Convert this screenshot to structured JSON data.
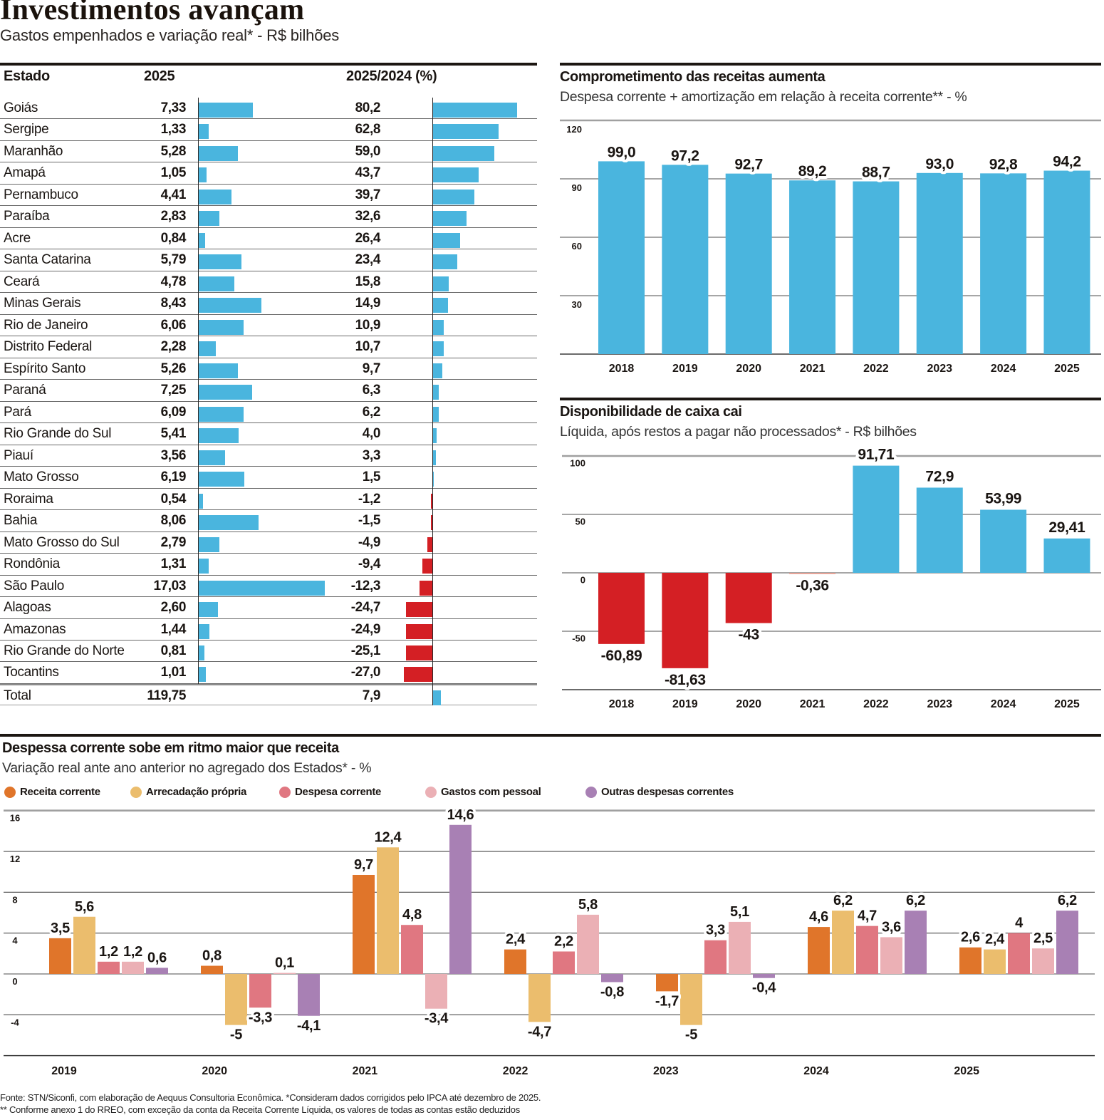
{
  "header": {
    "title": "Investimentos avançam",
    "subtitle": "Gastos empenhados e variação real* - R$ bilhões"
  },
  "chart_data": [
    {
      "type": "table",
      "columns": {
        "estado": "Estado",
        "investimento": "2025",
        "variacao": "2025/2024  (%)"
      },
      "colors": {
        "positive": "#4ab5de",
        "negative": "#d41f24"
      },
      "rows": [
        {
          "estado": "Goiás",
          "investimento_2025": 7.33,
          "investimento_label": "7,33",
          "variacao_pct": 80.2,
          "variacao_label": "80,2"
        },
        {
          "estado": "Sergipe",
          "investimento_2025": 1.33,
          "investimento_label": "1,33",
          "variacao_pct": 62.8,
          "variacao_label": "62,8"
        },
        {
          "estado": "Maranhão",
          "investimento_2025": 5.28,
          "investimento_label": "5,28",
          "variacao_pct": 59.0,
          "variacao_label": "59,0"
        },
        {
          "estado": "Amapá",
          "investimento_2025": 1.05,
          "investimento_label": "1,05",
          "variacao_pct": 43.7,
          "variacao_label": "43,7"
        },
        {
          "estado": "Pernambuco",
          "investimento_2025": 4.41,
          "investimento_label": "4,41",
          "variacao_pct": 39.7,
          "variacao_label": "39,7"
        },
        {
          "estado": "Paraíba",
          "investimento_2025": 2.83,
          "investimento_label": "2,83",
          "variacao_pct": 32.6,
          "variacao_label": "32,6"
        },
        {
          "estado": "Acre",
          "investimento_2025": 0.84,
          "investimento_label": "0,84",
          "variacao_pct": 26.4,
          "variacao_label": "26,4"
        },
        {
          "estado": "Santa Catarina",
          "investimento_2025": 5.79,
          "investimento_label": "5,79",
          "variacao_pct": 23.4,
          "variacao_label": "23,4"
        },
        {
          "estado": "Ceará",
          "investimento_2025": 4.78,
          "investimento_label": "4,78",
          "variacao_pct": 15.8,
          "variacao_label": "15,8"
        },
        {
          "estado": "Minas Gerais",
          "investimento_2025": 8.43,
          "investimento_label": "8,43",
          "variacao_pct": 14.9,
          "variacao_label": "14,9"
        },
        {
          "estado": "Rio de Janeiro",
          "investimento_2025": 6.06,
          "investimento_label": "6,06",
          "variacao_pct": 10.9,
          "variacao_label": "10,9"
        },
        {
          "estado": "Distrito Federal",
          "investimento_2025": 2.28,
          "investimento_label": "2,28",
          "variacao_pct": 10.7,
          "variacao_label": "10,7"
        },
        {
          "estado": "Espírito Santo",
          "investimento_2025": 5.26,
          "investimento_label": "5,26",
          "variacao_pct": 9.7,
          "variacao_label": "9,7"
        },
        {
          "estado": "Paraná",
          "investimento_2025": 7.25,
          "investimento_label": "7,25",
          "variacao_pct": 6.3,
          "variacao_label": "6,3"
        },
        {
          "estado": "Pará",
          "investimento_2025": 6.09,
          "investimento_label": "6,09",
          "variacao_pct": 6.2,
          "variacao_label": "6,2"
        },
        {
          "estado": "Rio Grande do Sul",
          "investimento_2025": 5.41,
          "investimento_label": "5,41",
          "variacao_pct": 4.0,
          "variacao_label": "4,0"
        },
        {
          "estado": "Piauí",
          "investimento_2025": 3.56,
          "investimento_label": "3,56",
          "variacao_pct": 3.3,
          "variacao_label": "3,3"
        },
        {
          "estado": "Mato Grosso",
          "investimento_2025": 6.19,
          "investimento_label": "6,19",
          "variacao_pct": 1.5,
          "variacao_label": "1,5"
        },
        {
          "estado": "Roraima",
          "investimento_2025": 0.54,
          "investimento_label": "0,54",
          "variacao_pct": -1.2,
          "variacao_label": "-1,2"
        },
        {
          "estado": "Bahia",
          "investimento_2025": 8.06,
          "investimento_label": "8,06",
          "variacao_pct": -1.5,
          "variacao_label": "-1,5"
        },
        {
          "estado": "Mato Grosso do Sul",
          "investimento_2025": 2.79,
          "investimento_label": "2,79",
          "variacao_pct": -4.9,
          "variacao_label": "-4,9"
        },
        {
          "estado": "Rondônia",
          "investimento_2025": 1.31,
          "investimento_label": "1,31",
          "variacao_pct": -9.4,
          "variacao_label": "-9,4"
        },
        {
          "estado": "São Paulo",
          "investimento_2025": 17.03,
          "investimento_label": "17,03",
          "variacao_pct": -12.3,
          "variacao_label": "-12,3"
        },
        {
          "estado": "Alagoas",
          "investimento_2025": 2.6,
          "investimento_label": "2,60",
          "variacao_pct": -24.7,
          "variacao_label": "-24,7"
        },
        {
          "estado": "Amazonas",
          "investimento_2025": 1.44,
          "investimento_label": "1,44",
          "variacao_pct": -24.9,
          "variacao_label": "-24,9"
        },
        {
          "estado": "Rio Grande do Norte",
          "investimento_2025": 0.81,
          "investimento_label": "0,81",
          "variacao_pct": -25.1,
          "variacao_label": "-25,1"
        },
        {
          "estado": "Tocantins",
          "investimento_2025": 1.01,
          "investimento_label": "1,01",
          "variacao_pct": -27.0,
          "variacao_label": "-27,0"
        }
      ],
      "total": {
        "estado": "Total",
        "investimento_2025": 119.75,
        "investimento_label": "119,75",
        "variacao_pct": 7.9,
        "variacao_label": "7,9"
      }
    },
    {
      "type": "bar",
      "title": "Comprometimento das receitas aumenta",
      "subtitle": "Despesa corrente + amortização em relação à receita corrente** - %",
      "categories": [
        "2018",
        "2019",
        "2020",
        "2021",
        "2022",
        "2023",
        "2024",
        "2025"
      ],
      "values": [
        99.0,
        97.2,
        92.7,
        89.2,
        88.7,
        93.0,
        92.8,
        94.2
      ],
      "labels": [
        "99,0",
        "97,2",
        "92,7",
        "89,2",
        "88,7",
        "93,0",
        "92,8",
        "94,2"
      ],
      "yticks": [
        120,
        90,
        60,
        30
      ],
      "ylim": [
        0,
        120
      ],
      "xlabel": "",
      "ylabel": "",
      "grid": true,
      "legend": "none",
      "colors": {
        "positive": "#4ab5de",
        "negative": "#d41f24"
      }
    },
    {
      "type": "bar",
      "title": "Disponibilidade de caixa cai",
      "subtitle": "Líquida, após restos a pagar não processados* - R$ bilhões",
      "categories": [
        "2018",
        "2019",
        "2020",
        "2021",
        "2022",
        "2023",
        "2024",
        "2025"
      ],
      "values": [
        -60.89,
        -81.63,
        -43,
        -0.36,
        91.71,
        72.9,
        53.99,
        29.41
      ],
      "labels": [
        "-60,89",
        "-81,63",
        "-43",
        "-0,36",
        "91,71",
        "72,9",
        "53,99",
        "29,41"
      ],
      "yticks": [
        100,
        50,
        0,
        -50
      ],
      "ylim": [
        -100,
        100
      ],
      "xlabel": "",
      "ylabel": "",
      "grid": true,
      "legend": "none",
      "colors": {
        "positive": "#4ab5de",
        "negative": "#d41f24"
      }
    },
    {
      "type": "bar",
      "subtype": "grouped",
      "title": "Despessa corrente sobe em ritmo maior que receita",
      "subtitle": "Variação real ante ano anterior no agregado dos Estados* - %",
      "categories": [
        "2019",
        "2020",
        "2021",
        "2022",
        "2023",
        "2024",
        "2025"
      ],
      "series": [
        {
          "name": "Receita corrente",
          "color": "#e0752a",
          "values": [
            3.5,
            0.8,
            9.7,
            2.4,
            -1.7,
            4.6,
            2.6
          ],
          "labels": [
            "3,5",
            "0,8",
            "9,7",
            "2,4",
            "-1,7",
            "4,6",
            "2,6"
          ]
        },
        {
          "name": "Arrecadação própria",
          "color": "#ebbd6d",
          "values": [
            5.6,
            -5,
            12.4,
            -4.7,
            -5,
            6.2,
            2.4
          ],
          "labels": [
            "5,6",
            "-5",
            "12,4",
            "-4,7",
            "-5",
            "6,2",
            "2,4"
          ]
        },
        {
          "name": "Despesa corrente",
          "color": "#e07781",
          "values": [
            1.2,
            -3.3,
            4.8,
            2.2,
            3.3,
            4.7,
            4
          ],
          "labels": [
            "1,2",
            "-3,3",
            "4,8",
            "2,2",
            "3,3",
            "4,7",
            "4"
          ]
        },
        {
          "name": "Gastos com pessoal",
          "color": "#ebb0b5",
          "values": [
            1.2,
            0.1,
            -3.4,
            5.8,
            5.1,
            3.6,
            2.5
          ],
          "labels": [
            "1,2",
            "0,1",
            "-3,4",
            "5,8",
            "5,1",
            "3,6",
            "2,5"
          ]
        },
        {
          "name": "Outras despesas correntes",
          "color": "#a880b4",
          "values": [
            0.6,
            -4.1,
            14.6,
            -0.8,
            -0.4,
            6.2,
            6.2
          ],
          "labels": [
            "0,6",
            "-4,1",
            "14,6",
            "-0,8",
            "-0,4",
            "6,2",
            "6,2"
          ]
        }
      ],
      "yticks": [
        16,
        12,
        8,
        4,
        0,
        -4
      ],
      "ylim": [
        -8,
        16
      ],
      "xlabel": "",
      "ylabel": "",
      "grid": true,
      "legend": "top-left"
    }
  ],
  "footer": {
    "notes": [
      "Fonte: STN/Siconfi, com elaboração de Aequus Consultoria Econômica. *Consideram dados corrigidos pelo IPCA até dezembro de 2025.",
      "** Conforme anexo 1 do RREO, com exceção da conta da Receita Corrente Líquida, os valores de todas as contas estão deduzidos"
    ]
  }
}
